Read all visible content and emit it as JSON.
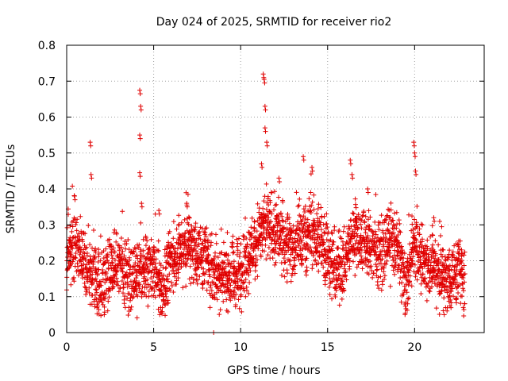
{
  "chart_data": {
    "type": "scatter",
    "title": "Day 024 of 2025, SRMTID for receiver rio2",
    "xlabel": "GPS time / hours",
    "ylabel": "SRMTID / TECUs",
    "xlim": [
      0,
      24
    ],
    "ylim": [
      0,
      0.8
    ],
    "x_ticks": [
      0,
      5,
      10,
      15,
      20
    ],
    "x_tick_labels": [
      "0",
      "5",
      "10",
      "15",
      "20"
    ],
    "y_ticks": [
      0,
      0.1,
      0.2,
      0.3,
      0.4,
      0.5,
      0.6,
      0.7,
      0.8
    ],
    "y_tick_labels": [
      "0",
      "0.1",
      "0.2",
      "0.3",
      "0.4",
      "0.5",
      "0.6",
      "0.7",
      "0.8"
    ],
    "grid": true,
    "marker": "+",
    "color": "#e00000",
    "series": [
      {
        "name": "SRMTID",
        "profile": [
          [
            0.0,
            0.21
          ],
          [
            0.5,
            0.25
          ],
          [
            1.0,
            0.2
          ],
          [
            1.5,
            0.15
          ],
          [
            2.0,
            0.14
          ],
          [
            2.5,
            0.17
          ],
          [
            3.0,
            0.19
          ],
          [
            3.5,
            0.16
          ],
          [
            4.0,
            0.15
          ],
          [
            4.5,
            0.17
          ],
          [
            5.0,
            0.19
          ],
          [
            5.5,
            0.12
          ],
          [
            6.0,
            0.2
          ],
          [
            6.5,
            0.23
          ],
          [
            7.0,
            0.25
          ],
          [
            7.5,
            0.22
          ],
          [
            8.0,
            0.2
          ],
          [
            8.5,
            0.17
          ],
          [
            9.0,
            0.16
          ],
          [
            9.5,
            0.15
          ],
          [
            10.0,
            0.17
          ],
          [
            10.5,
            0.22
          ],
          [
            11.0,
            0.27
          ],
          [
            11.5,
            0.3
          ],
          [
            12.0,
            0.28
          ],
          [
            12.5,
            0.26
          ],
          [
            13.0,
            0.24
          ],
          [
            13.5,
            0.25
          ],
          [
            14.0,
            0.28
          ],
          [
            14.5,
            0.27
          ],
          [
            15.0,
            0.22
          ],
          [
            15.5,
            0.17
          ],
          [
            16.0,
            0.2
          ],
          [
            16.5,
            0.28
          ],
          [
            17.0,
            0.25
          ],
          [
            17.5,
            0.23
          ],
          [
            18.0,
            0.22
          ],
          [
            18.5,
            0.26
          ],
          [
            19.0,
            0.24
          ],
          [
            19.5,
            0.13
          ],
          [
            20.0,
            0.26
          ],
          [
            20.5,
            0.19
          ],
          [
            21.0,
            0.2
          ],
          [
            21.5,
            0.16
          ],
          [
            22.0,
            0.15
          ],
          [
            22.5,
            0.17
          ],
          [
            22.9,
            0.14
          ]
        ],
        "spikes": [
          [
            0.45,
            0.38
          ],
          [
            1.35,
            0.53
          ],
          [
            1.4,
            0.44
          ],
          [
            4.2,
            0.675
          ],
          [
            4.25,
            0.63
          ],
          [
            4.2,
            0.55
          ],
          [
            4.2,
            0.445
          ],
          [
            4.3,
            0.36
          ],
          [
            5.3,
            0.34
          ],
          [
            6.9,
            0.36
          ],
          [
            11.3,
            0.72
          ],
          [
            11.35,
            0.705
          ],
          [
            11.4,
            0.63
          ],
          [
            11.4,
            0.57
          ],
          [
            11.5,
            0.53
          ],
          [
            11.2,
            0.47
          ],
          [
            12.2,
            0.43
          ],
          [
            13.6,
            0.49
          ],
          [
            14.1,
            0.46
          ],
          [
            16.3,
            0.48
          ],
          [
            16.4,
            0.44
          ],
          [
            17.3,
            0.4
          ],
          [
            19.95,
            0.53
          ],
          [
            20.0,
            0.5
          ],
          [
            20.05,
            0.45
          ],
          [
            21.1,
            0.32
          ],
          [
            22.7,
            0.23
          ]
        ],
        "dips": [
          [
            5.35,
            0.05
          ],
          [
            5.4,
            0.07
          ],
          [
            19.45,
            0.05
          ],
          [
            19.6,
            0.08
          ],
          [
            8.45,
            0.0
          ]
        ]
      }
    ]
  }
}
